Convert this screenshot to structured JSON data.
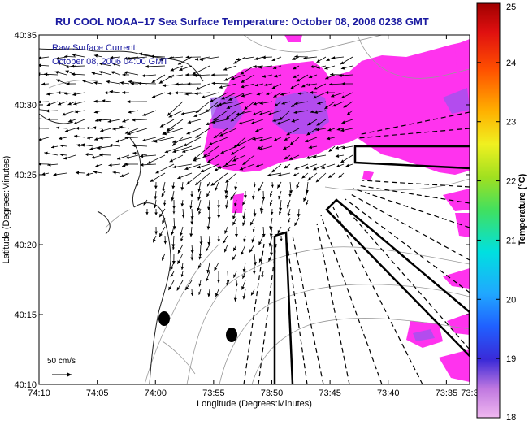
{
  "chart_data": {
    "type": "heatmap",
    "title": "RU COOL  NOAA–17  Sea Surface Temperature:  October 08, 2006 0238 GMT",
    "overlay": {
      "line1": "Raw Surface Current:",
      "line2": "October 08, 2006 04:00 GMT"
    },
    "xlabel": "Longitude (Degrees:Minutes)",
    "ylabel": "Latitude (Degrees:Minutes)",
    "xlim": [
      -74.1667,
      -73.55
    ],
    "ylim": [
      40.1667,
      40.5833
    ],
    "x_ticks": [
      {
        "value": -74.1667,
        "label": "74:10"
      },
      {
        "value": -74.0833,
        "label": "74:05"
      },
      {
        "value": -74.0,
        "label": "74:00"
      },
      {
        "value": -73.9167,
        "label": "73:55"
      },
      {
        "value": -73.8333,
        "label": "73:50"
      },
      {
        "value": -73.75,
        "label": "73:45"
      },
      {
        "value": -73.6667,
        "label": "73:40"
      },
      {
        "value": -73.5833,
        "label": "73:35"
      },
      {
        "value": -73.55,
        "label": "73:3"
      }
    ],
    "y_ticks": [
      {
        "value": 40.1667,
        "label": "40:10"
      },
      {
        "value": 40.25,
        "label": "40:15"
      },
      {
        "value": 40.3333,
        "label": "40:20"
      },
      {
        "value": 40.4167,
        "label": "40:25"
      },
      {
        "value": 40.5,
        "label": "40:30"
      },
      {
        "value": 40.5833,
        "label": "40:35"
      }
    ],
    "colorbar": {
      "label": "Temperature (°C)",
      "min": 18,
      "max": 25,
      "ticks": [
        "18",
        "19",
        "20",
        "21",
        "22",
        "23",
        "24",
        "25"
      ]
    },
    "scale_label": "50 cm/s",
    "sst_patches": [
      {
        "lon": -73.95,
        "lat": 40.5,
        "temp": 18.3
      },
      {
        "lon": -73.9,
        "lat": 40.52,
        "temp": 18.5
      },
      {
        "lon": -73.85,
        "lat": 40.5,
        "temp": 18.7
      },
      {
        "lon": -73.8,
        "lat": 40.51,
        "temp": 18.6
      },
      {
        "lon": -73.72,
        "lat": 40.52,
        "temp": 18.4
      },
      {
        "lon": -73.65,
        "lat": 40.5,
        "temp": 18.3
      },
      {
        "lon": -73.58,
        "lat": 40.53,
        "temp": 18.2
      }
    ],
    "grid": false
  }
}
